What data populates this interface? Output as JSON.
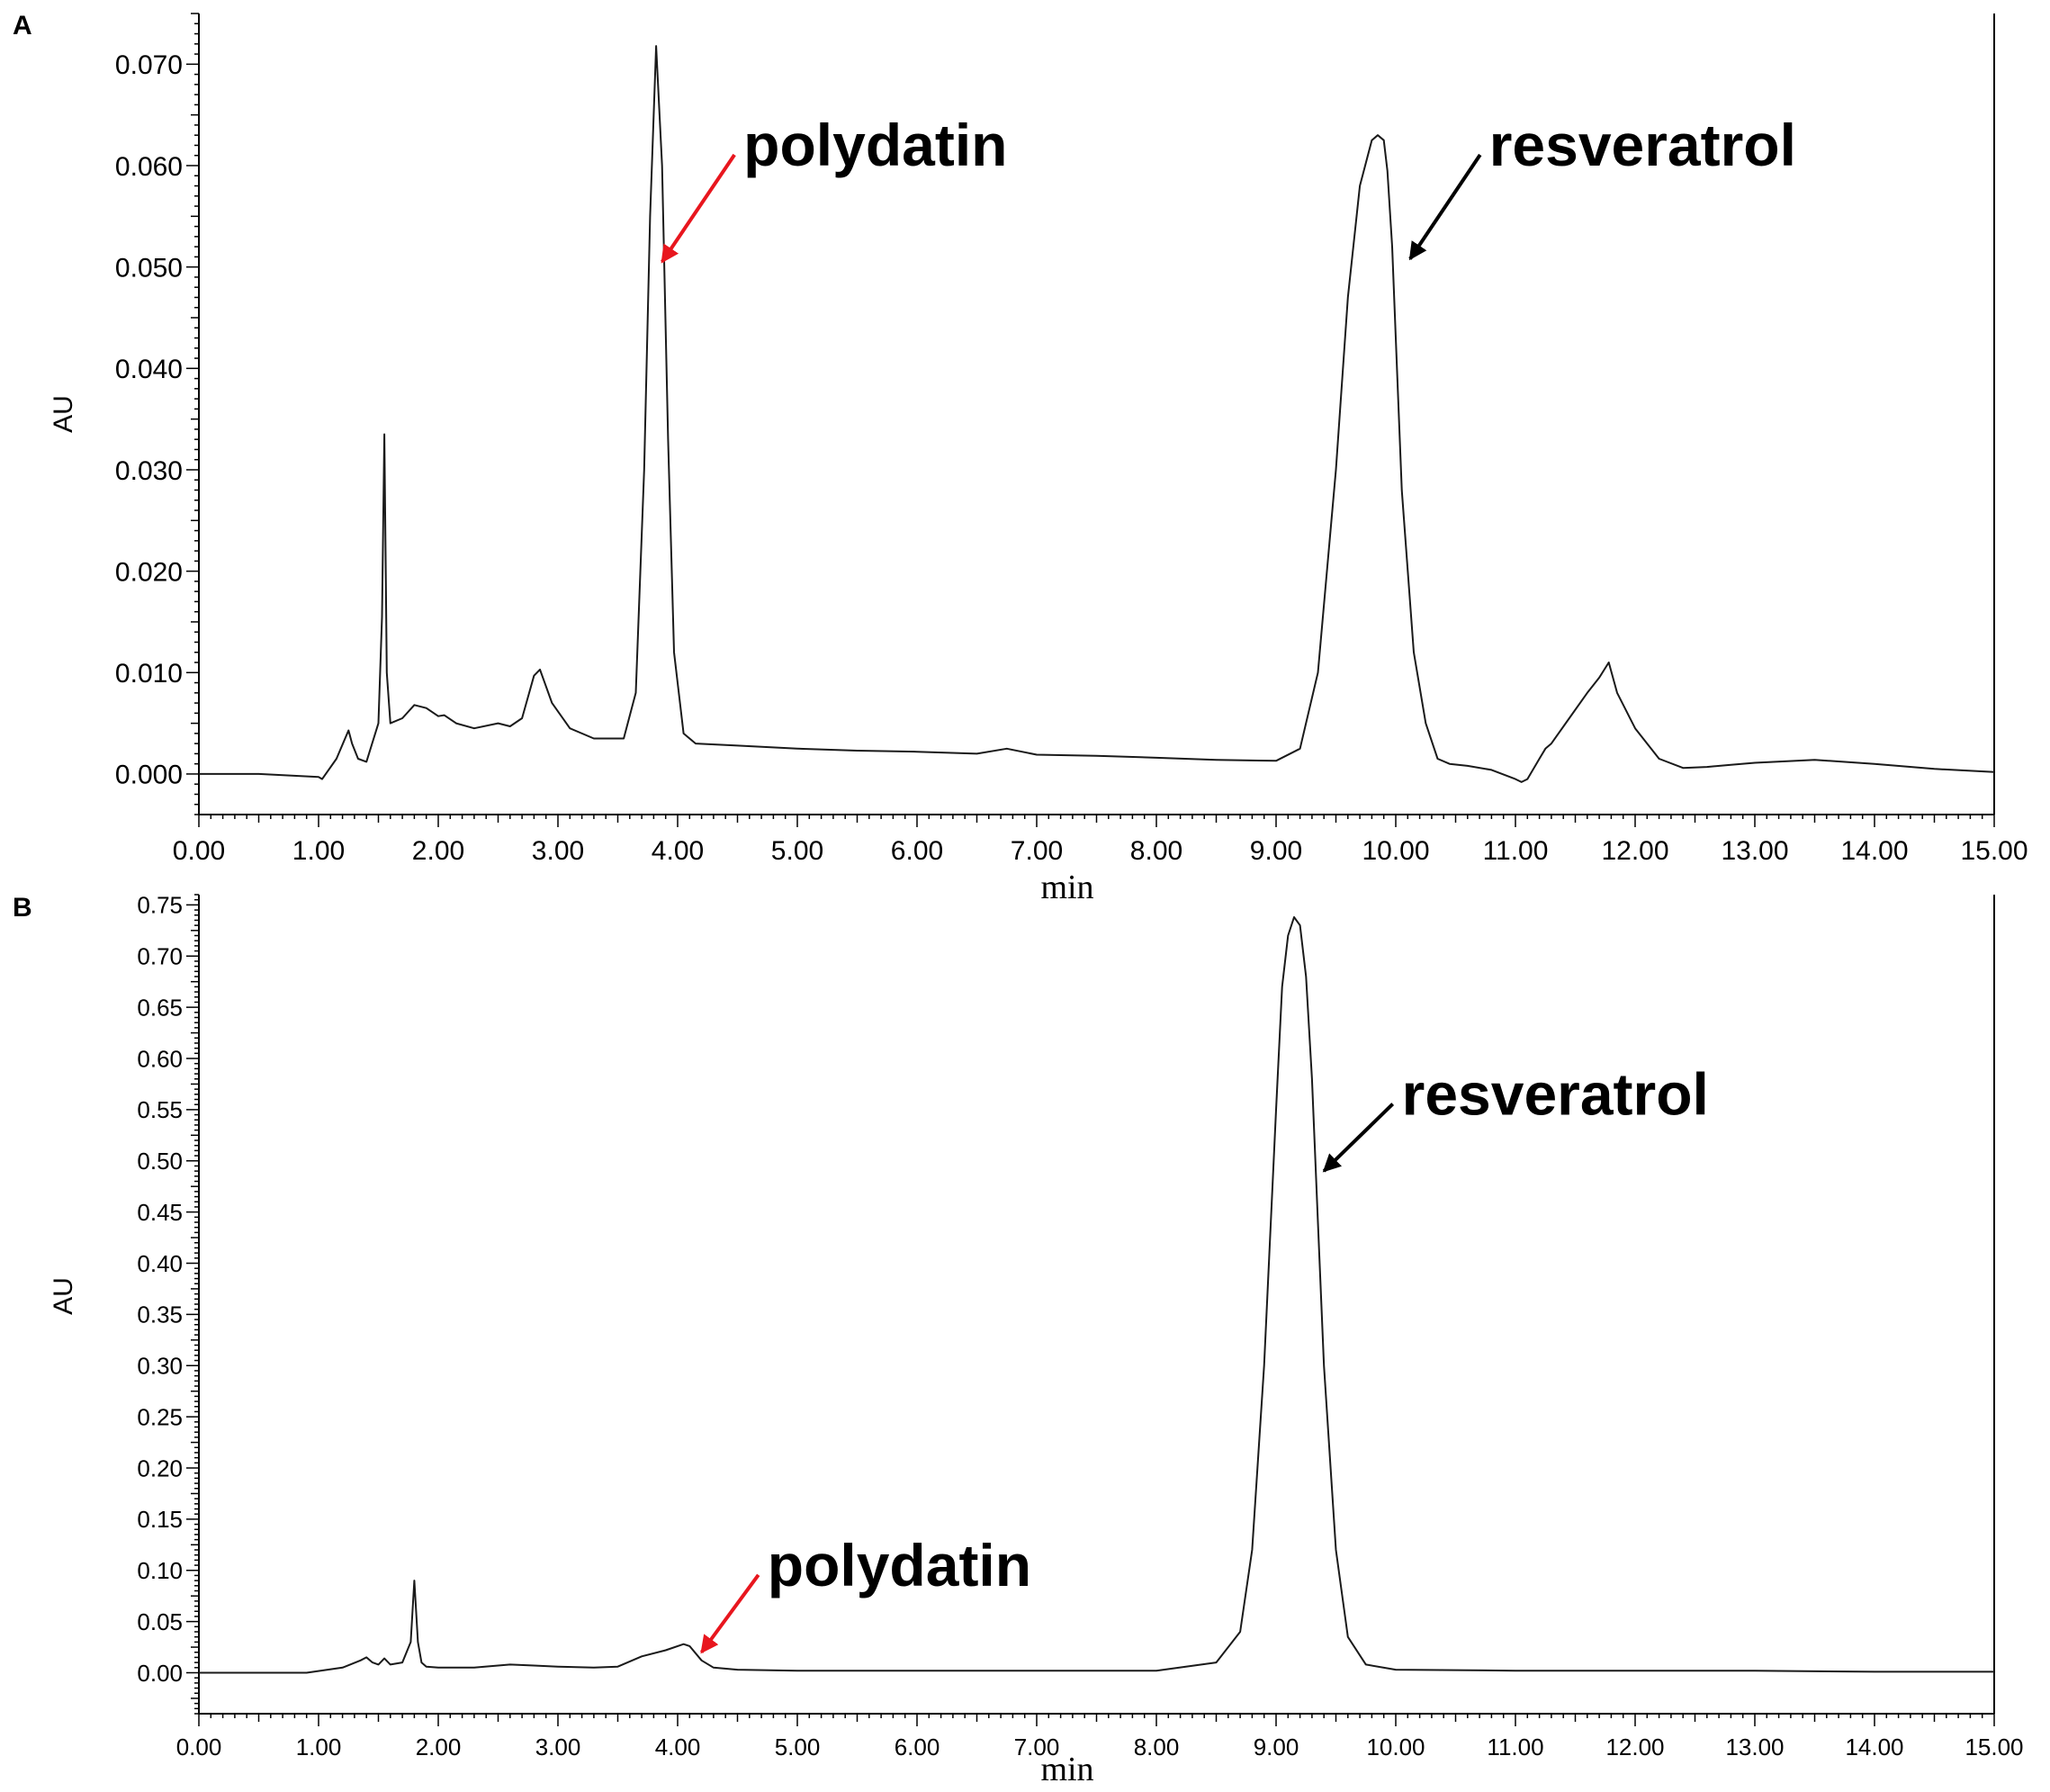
{
  "chart_data": [
    {
      "type": "line",
      "panel_label": "A",
      "xlabel": "min",
      "ylabel": "AU",
      "xlim": [
        0,
        15
      ],
      "ylim": [
        -0.004,
        0.075
      ],
      "x_ticks": [
        "0.00",
        "1.00",
        "2.00",
        "3.00",
        "4.00",
        "5.00",
        "6.00",
        "7.00",
        "8.00",
        "9.00",
        "10.00",
        "11.00",
        "12.00",
        "13.00",
        "14.00",
        "15.00"
      ],
      "y_ticks": [
        "0.000",
        "0.010",
        "0.020",
        "0.030",
        "0.040",
        "0.050",
        "0.060",
        "0.070"
      ],
      "y_tick_values": [
        0,
        0.01,
        0.02,
        0.03,
        0.04,
        0.05,
        0.06,
        0.07
      ],
      "series": [
        {
          "x": [
            0,
            0.5,
            1.0,
            1.03,
            1.15,
            1.25,
            1.28,
            1.33,
            1.4,
            1.5,
            1.53,
            1.55,
            1.57,
            1.6,
            1.7,
            1.8,
            1.9,
            2.0,
            2.05,
            2.15,
            2.3,
            2.5,
            2.6,
            2.7,
            2.8,
            2.85,
            2.95,
            3.1,
            3.3,
            3.55,
            3.65,
            3.72,
            3.77,
            3.82,
            3.87,
            3.92,
            3.97,
            4.05,
            4.15,
            4.5,
            5.0,
            5.5,
            6.0,
            6.5,
            6.75,
            7.0,
            7.5,
            8.0,
            8.5,
            9.0,
            9.2,
            9.35,
            9.5,
            9.6,
            9.7,
            9.8,
            9.85,
            9.9,
            9.93,
            9.97,
            10.0,
            10.05,
            10.15,
            10.25,
            10.35,
            10.45,
            10.6,
            10.8,
            11.0,
            11.05,
            11.1,
            11.2,
            11.25,
            11.3,
            11.45,
            11.6,
            11.7,
            11.78,
            11.85,
            12.0,
            12.2,
            12.4,
            12.6,
            12.8,
            13.0,
            13.5,
            14.0,
            14.5,
            15.0
          ],
          "y": [
            0,
            0,
            -0.0003,
            -0.0005,
            0.0015,
            0.0043,
            0.003,
            0.0015,
            0.0012,
            0.005,
            0.0155,
            0.0335,
            0.01,
            0.005,
            0.0055,
            0.0068,
            0.0065,
            0.0057,
            0.0058,
            0.005,
            0.0045,
            0.005,
            0.0047,
            0.0055,
            0.0097,
            0.0103,
            0.007,
            0.0045,
            0.0035,
            0.0035,
            0.008,
            0.03,
            0.055,
            0.0718,
            0.06,
            0.033,
            0.012,
            0.004,
            0.003,
            0.0028,
            0.0025,
            0.0023,
            0.0022,
            0.002,
            0.0025,
            0.0019,
            0.0018,
            0.0016,
            0.0014,
            0.0013,
            0.0025,
            0.01,
            0.03,
            0.047,
            0.058,
            0.0625,
            0.063,
            0.0625,
            0.0595,
            0.052,
            0.043,
            0.028,
            0.012,
            0.005,
            0.0015,
            0.001,
            0.0008,
            0.0004,
            -0.0005,
            -0.0008,
            -0.0005,
            0.0015,
            0.0025,
            0.003,
            0.0055,
            0.008,
            0.0095,
            0.011,
            0.008,
            0.0045,
            0.0015,
            0.0006,
            0.0007,
            0.0009,
            0.0011,
            0.0014,
            0.001,
            0.0005,
            0.0002
          ]
        }
      ],
      "annotations": [
        {
          "text": "polydatin",
          "arrow_color": "#e8161e",
          "arrow_to_x": 3.87,
          "arrow_to_y": 0.0505,
          "label_x": 4.55,
          "label_y": 0.06
        },
        {
          "text": "resveratrol",
          "arrow_color": "#000000",
          "arrow_to_x": 10.12,
          "arrow_to_y": 0.0508,
          "label_x": 10.78,
          "label_y": 0.06
        }
      ]
    },
    {
      "type": "line",
      "panel_label": "B",
      "xlabel": "min",
      "ylabel": "AU",
      "xlim": [
        0,
        15
      ],
      "ylim": [
        -0.04,
        0.76
      ],
      "x_ticks": [
        "0.00",
        "1.00",
        "2.00",
        "3.00",
        "4.00",
        "5.00",
        "6.00",
        "7.00",
        "8.00",
        "9.00",
        "10.00",
        "11.00",
        "12.00",
        "13.00",
        "14.00",
        "15.00"
      ],
      "y_ticks": [
        "0.00",
        "0.05",
        "0.10",
        "0.15",
        "0.20",
        "0.25",
        "0.30",
        "0.35",
        "0.40",
        "0.45",
        "0.50",
        "0.55",
        "0.60",
        "0.65",
        "0.70",
        "0.75"
      ],
      "y_tick_values": [
        0,
        0.05,
        0.1,
        0.15,
        0.2,
        0.25,
        0.3,
        0.35,
        0.4,
        0.45,
        0.5,
        0.55,
        0.6,
        0.65,
        0.7,
        0.75
      ],
      "series": [
        {
          "x": [
            0,
            0.5,
            0.9,
            1.2,
            1.35,
            1.4,
            1.45,
            1.5,
            1.55,
            1.6,
            1.7,
            1.77,
            1.8,
            1.83,
            1.86,
            1.9,
            2.0,
            2.3,
            2.6,
            2.8,
            3.0,
            3.3,
            3.5,
            3.7,
            3.9,
            4.05,
            4.1,
            4.2,
            4.3,
            4.5,
            5.0,
            6.0,
            7.0,
            8.0,
            8.5,
            8.7,
            8.8,
            8.9,
            9.0,
            9.05,
            9.1,
            9.15,
            9.2,
            9.25,
            9.3,
            9.35,
            9.4,
            9.5,
            9.6,
            9.75,
            10.0,
            11.0,
            12.0,
            13.0,
            14.0,
            15.0
          ],
          "y": [
            0,
            0,
            0,
            0.005,
            0.012,
            0.015,
            0.01,
            0.008,
            0.014,
            0.008,
            0.01,
            0.03,
            0.09,
            0.03,
            0.01,
            0.006,
            0.005,
            0.005,
            0.008,
            0.007,
            0.006,
            0.005,
            0.006,
            0.016,
            0.022,
            0.028,
            0.026,
            0.012,
            0.005,
            0.003,
            0.002,
            0.002,
            0.002,
            0.002,
            0.01,
            0.04,
            0.12,
            0.3,
            0.55,
            0.67,
            0.72,
            0.738,
            0.73,
            0.68,
            0.58,
            0.44,
            0.3,
            0.12,
            0.035,
            0.008,
            0.003,
            0.002,
            0.002,
            0.002,
            0.001,
            0.001
          ]
        }
      ],
      "annotations": [
        {
          "text": "polydatin",
          "arrow_color": "#e8161e",
          "arrow_to_x": 4.2,
          "arrow_to_y": 0.02,
          "label_x": 4.75,
          "label_y": 0.085
        },
        {
          "text": "resveratrol",
          "arrow_color": "#000000",
          "arrow_to_x": 9.4,
          "arrow_to_y": 0.49,
          "label_x": 10.05,
          "label_y": 0.545
        }
      ]
    }
  ]
}
